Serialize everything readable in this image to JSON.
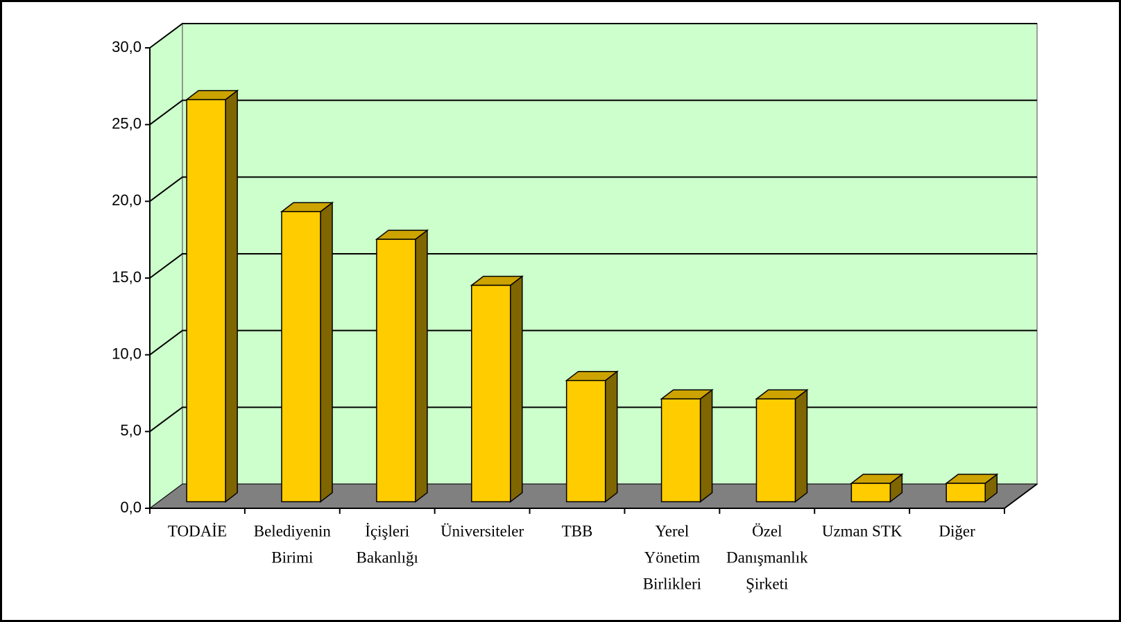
{
  "chart_data": {
    "type": "bar3d",
    "categories": [
      [
        "TODAİE"
      ],
      [
        "Belediyenin",
        "Birimi"
      ],
      [
        "İçişleri",
        "Bakanlığı"
      ],
      [
        "Üniversiteler"
      ],
      [
        "TBB"
      ],
      [
        "Yerel",
        "Yönetim",
        "Birlikleri"
      ],
      [
        "Özel",
        "Danışmanlık",
        "Şirketi"
      ],
      [
        "Uzman STK"
      ],
      [
        "Diğer"
      ]
    ],
    "values": [
      26.2,
      18.9,
      17.1,
      14.1,
      7.9,
      6.7,
      6.7,
      1.2,
      1.2
    ],
    "color": "#ffcc00",
    "ylim": [
      0,
      30
    ],
    "yticks": [
      {
        "value": 0,
        "label": "0,0"
      },
      {
        "value": 5,
        "label": "5,0"
      },
      {
        "value": 10,
        "label": "10,0"
      },
      {
        "value": 15,
        "label": "15,0"
      },
      {
        "value": 20,
        "label": "20,0"
      },
      {
        "value": 25,
        "label": "25,0"
      },
      {
        "value": 30,
        "label": "30,0"
      }
    ],
    "grid": true
  }
}
